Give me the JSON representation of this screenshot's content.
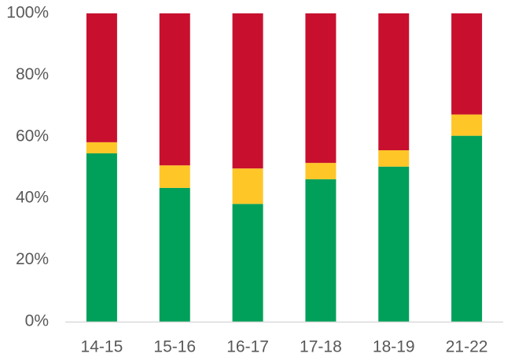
{
  "chart_data": {
    "type": "bar",
    "stacked": true,
    "categories": [
      "14-15",
      "15-16",
      "16-17",
      "17-18",
      "18-19",
      "21-22"
    ],
    "series": [
      {
        "values": [
          54.6,
          43.4,
          38.2,
          46.2,
          50.3,
          60.3
        ],
        "color": "#00a05a"
      },
      {
        "values": [
          3.6,
          7.3,
          11.5,
          5.3,
          5.3,
          6.9
        ],
        "color": "#ffc627"
      },
      {
        "values": [
          41.8,
          49.3,
          50.3,
          48.5,
          44.4,
          32.8
        ],
        "color": "#c8102e"
      }
    ],
    "ylim": [
      0,
      100
    ],
    "yticks": [
      "0%",
      "20%",
      "40%",
      "60%",
      "80%",
      "100%"
    ],
    "grid": false,
    "legend": "none",
    "axis_color": "#d9d9d9",
    "label_color": "#595959"
  }
}
